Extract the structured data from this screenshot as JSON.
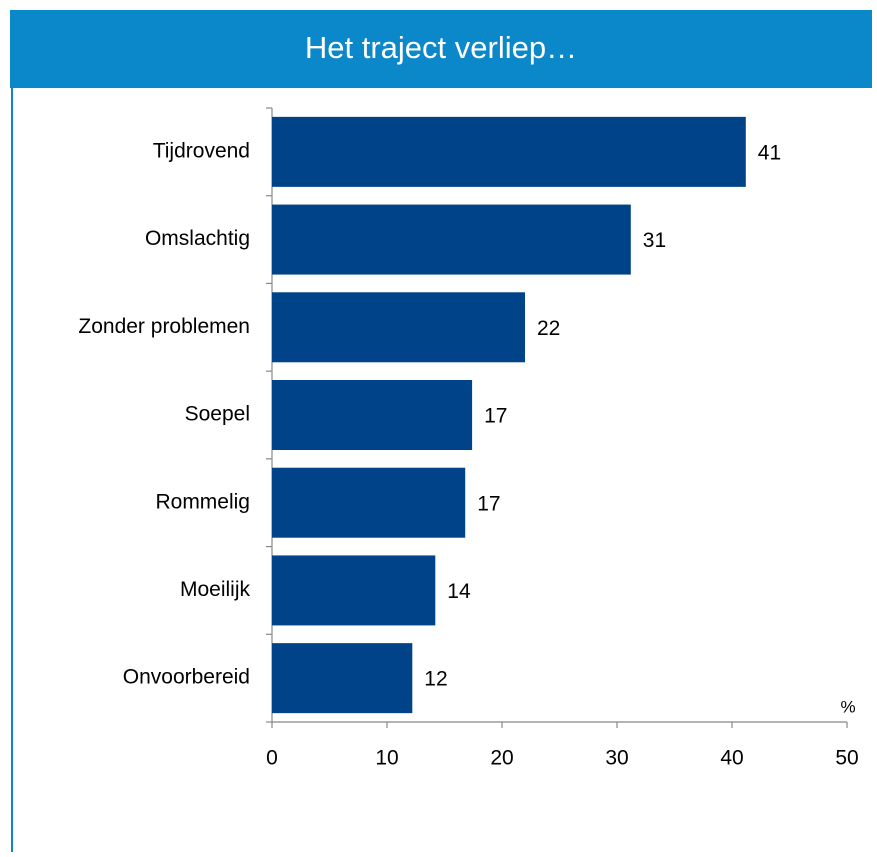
{
  "chart_data": {
    "type": "hbar",
    "title": "Het traject verliep…",
    "xlabel": "%",
    "categories": [
      "Tijdrovend",
      "Omslachtig",
      "Zonder problemen",
      "Soepel",
      "Rommelig",
      "Moeilijk",
      "Onvoorbereid"
    ],
    "values": [
      41.2,
      31.2,
      22.0,
      17.4,
      16.8,
      14.2,
      12.2
    ],
    "value_labels": [
      "41",
      "31",
      "22",
      "17",
      "17",
      "14",
      "12"
    ],
    "color": "#004388",
    "xlim": [
      0,
      50
    ],
    "xticks": [
      0,
      10,
      20,
      30,
      40,
      50
    ]
  }
}
